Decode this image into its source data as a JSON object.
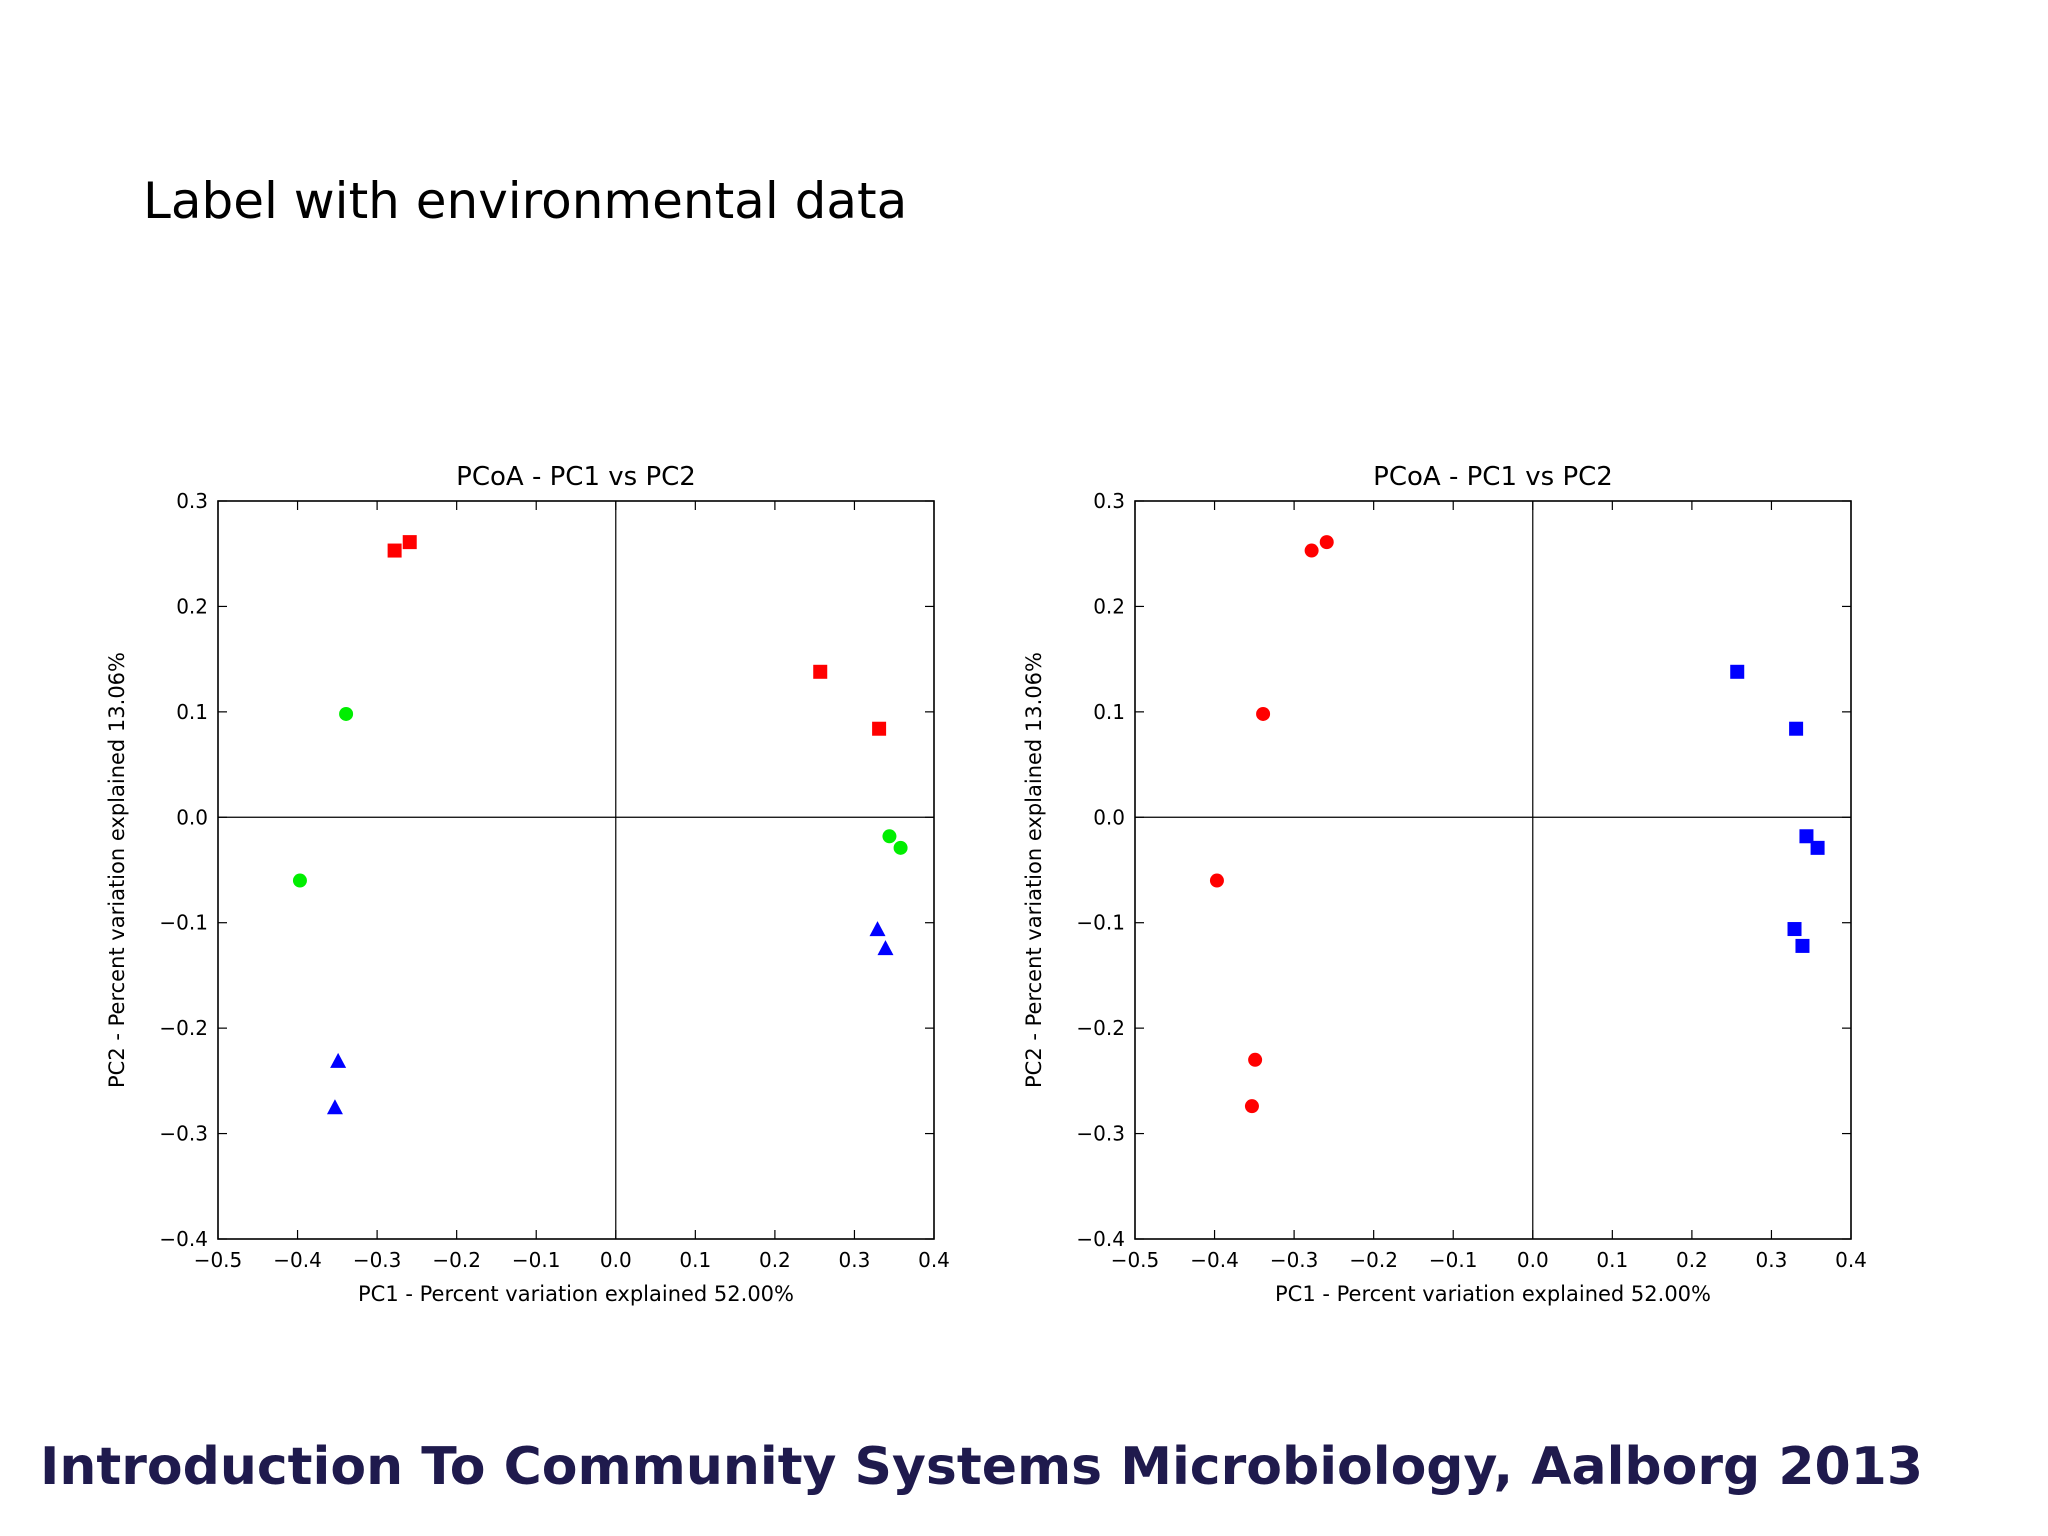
{
  "slide": {
    "title": "Label with environmental data",
    "footer": "Introduction To Community Systems Microbiology, Aalborg 2013"
  },
  "chart_data": [
    {
      "type": "scatter",
      "title": "PCoA - PC1 vs PC2",
      "xlabel": "PC1 - Percent variation explained 52.00%",
      "ylabel": "PC2 - Percent variation explained 13.06%",
      "xlim": [
        -0.5,
        0.4
      ],
      "ylim": [
        -0.4,
        0.3
      ],
      "xticks": [
        "−0.5",
        "−0.4",
        "−0.3",
        "−0.2",
        "−0.1",
        "0.0",
        "0.1",
        "0.2",
        "0.3",
        "0.4"
      ],
      "yticks": [
        "0.3",
        "0.2",
        "0.1",
        "0.0",
        "−0.1",
        "−0.2",
        "−0.3",
        "−0.4"
      ],
      "grid": false,
      "zero_lines": true,
      "series": [
        {
          "marker": "square",
          "color": "#ff0000",
          "points": [
            [
              -0.278,
              0.253
            ],
            [
              -0.259,
              0.261
            ],
            [
              0.257,
              0.138
            ],
            [
              0.331,
              0.084
            ]
          ]
        },
        {
          "marker": "circle",
          "color": "#00ee00",
          "points": [
            [
              -0.339,
              0.098
            ],
            [
              -0.397,
              -0.06
            ],
            [
              0.344,
              -0.018
            ],
            [
              0.358,
              -0.029
            ]
          ]
        },
        {
          "marker": "triangle",
          "color": "#0000ff",
          "points": [
            [
              -0.349,
              -0.232
            ],
            [
              -0.353,
              -0.276
            ],
            [
              0.329,
              -0.107
            ],
            [
              0.339,
              -0.125
            ]
          ]
        }
      ]
    },
    {
      "type": "scatter",
      "title": "PCoA - PC1 vs PC2",
      "xlabel": "PC1 - Percent variation explained 52.00%",
      "ylabel": "PC2 - Percent variation explained 13.06%",
      "xlim": [
        -0.5,
        0.4
      ],
      "ylim": [
        -0.4,
        0.3
      ],
      "xticks": [
        "−0.5",
        "−0.4",
        "−0.3",
        "−0.2",
        "−0.1",
        "0.0",
        "0.1",
        "0.2",
        "0.3",
        "0.4"
      ],
      "yticks": [
        "0.3",
        "0.2",
        "0.1",
        "0.0",
        "−0.1",
        "−0.2",
        "−0.3",
        "−0.4"
      ],
      "grid": false,
      "zero_lines": true,
      "series": [
        {
          "marker": "circle",
          "color": "#ff0000",
          "points": [
            [
              -0.278,
              0.253
            ],
            [
              -0.259,
              0.261
            ],
            [
              -0.339,
              0.098
            ],
            [
              -0.397,
              -0.06
            ],
            [
              -0.349,
              -0.23
            ],
            [
              -0.353,
              -0.274
            ]
          ]
        },
        {
          "marker": "square",
          "color": "#0000ff",
          "points": [
            [
              0.257,
              0.138
            ],
            [
              0.331,
              0.084
            ],
            [
              0.344,
              -0.018
            ],
            [
              0.358,
              -0.029
            ],
            [
              0.329,
              -0.106
            ],
            [
              0.339,
              -0.122
            ]
          ]
        }
      ]
    }
  ]
}
